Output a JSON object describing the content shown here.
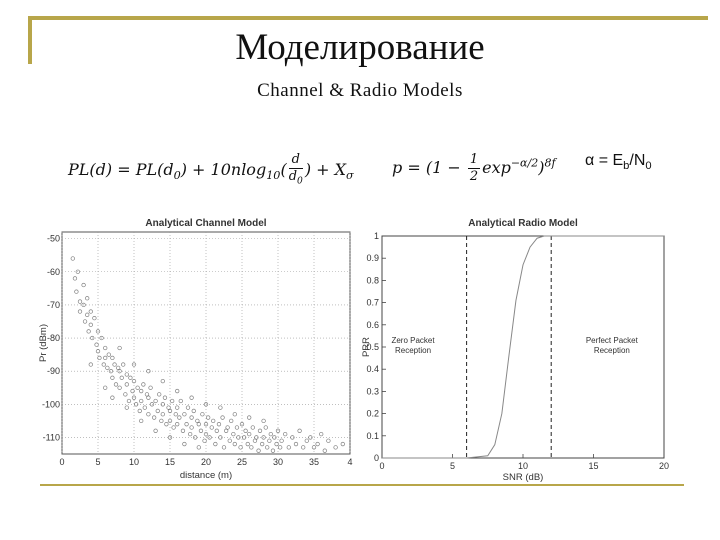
{
  "slide": {
    "title": "Моделирование",
    "subtitle": "Channel & Radio Models",
    "alpha_definition": {
      "lhs": "α = E",
      "e_sub": "b",
      "mid": "/N",
      "n_sub": "0"
    },
    "formula_pl": "PL(d) = PL(d0) + 10nlog10(d/d0) + Xσ",
    "formula_p": "p = (1 − ½ exp(−α/2))^8f"
  },
  "chart_data": [
    {
      "type": "scatter",
      "title": "Analytical Channel Model",
      "xlabel": "distance (m)",
      "ylabel": "Pr (dBm)",
      "xlim": [
        0,
        40
      ],
      "ylim": [
        -115,
        -48
      ],
      "xticks": [
        "0",
        "5",
        "10",
        "15",
        "20",
        "25",
        "30",
        "35",
        "4"
      ],
      "yticks": [
        "-50",
        "-60",
        "-70",
        "-80",
        "-90",
        "-100",
        "-110"
      ],
      "grid": true,
      "points": [
        [
          1.5,
          -56
        ],
        [
          1.8,
          -62
        ],
        [
          2,
          -66
        ],
        [
          2.2,
          -60
        ],
        [
          2.5,
          -69
        ],
        [
          2.5,
          -72
        ],
        [
          3,
          -64
        ],
        [
          3,
          -70
        ],
        [
          3.2,
          -75
        ],
        [
          3.5,
          -68
        ],
        [
          3.5,
          -73
        ],
        [
          3.7,
          -78
        ],
        [
          4,
          -72
        ],
        [
          4,
          -76
        ],
        [
          4.2,
          -80
        ],
        [
          4.5,
          -74
        ],
        [
          4.8,
          -82
        ],
        [
          5,
          -78
        ],
        [
          5,
          -84
        ],
        [
          5.2,
          -86
        ],
        [
          5.5,
          -80
        ],
        [
          5.8,
          -88
        ],
        [
          6,
          -83
        ],
        [
          6,
          -86
        ],
        [
          6.3,
          -89
        ],
        [
          6.5,
          -85
        ],
        [
          6.8,
          -90
        ],
        [
          7,
          -86
        ],
        [
          7,
          -92
        ],
        [
          7.3,
          -88
        ],
        [
          7.5,
          -94
        ],
        [
          7.8,
          -89
        ],
        [
          8,
          -90
        ],
        [
          8,
          -95
        ],
        [
          8.3,
          -92
        ],
        [
          8.5,
          -88
        ],
        [
          8.8,
          -97
        ],
        [
          9,
          -91
        ],
        [
          9,
          -94
        ],
        [
          9.3,
          -99
        ],
        [
          9.5,
          -92
        ],
        [
          9.8,
          -96
        ],
        [
          10,
          -93
        ],
        [
          10,
          -98
        ],
        [
          10.3,
          -100
        ],
        [
          10.5,
          -95
        ],
        [
          10.8,
          -102
        ],
        [
          11,
          -96
        ],
        [
          11,
          -99
        ],
        [
          11.3,
          -94
        ],
        [
          11.5,
          -101
        ],
        [
          11.8,
          -97
        ],
        [
          12,
          -98
        ],
        [
          12,
          -103
        ],
        [
          12.3,
          -95
        ],
        [
          12.5,
          -100
        ],
        [
          12.8,
          -104
        ],
        [
          13,
          -99
        ],
        [
          13.3,
          -102
        ],
        [
          13.5,
          -97
        ],
        [
          13.8,
          -105
        ],
        [
          14,
          -100
        ],
        [
          14,
          -103
        ],
        [
          14.3,
          -98
        ],
        [
          14.5,
          -106
        ],
        [
          14.8,
          -101
        ],
        [
          15,
          -102
        ],
        [
          15,
          -105
        ],
        [
          15.3,
          -99
        ],
        [
          15.5,
          -107
        ],
        [
          15.8,
          -103
        ],
        [
          16,
          -101
        ],
        [
          16,
          -106
        ],
        [
          16.3,
          -104
        ],
        [
          16.5,
          -99
        ],
        [
          16.8,
          -108
        ],
        [
          17,
          -103
        ],
        [
          17.3,
          -106
        ],
        [
          17.5,
          -101
        ],
        [
          17.8,
          -109
        ],
        [
          18,
          -104
        ],
        [
          18,
          -107
        ],
        [
          18.3,
          -102
        ],
        [
          18.5,
          -110
        ],
        [
          18.8,
          -105
        ],
        [
          19,
          -106
        ],
        [
          19.3,
          -108
        ],
        [
          19.5,
          -103
        ],
        [
          19.8,
          -111
        ],
        [
          20,
          -106
        ],
        [
          20,
          -109
        ],
        [
          20.3,
          -104
        ],
        [
          20.5,
          -110
        ],
        [
          20.8,
          -107
        ],
        [
          21,
          -105
        ],
        [
          21.3,
          -112
        ],
        [
          21.5,
          -108
        ],
        [
          21.8,
          -106
        ],
        [
          22,
          -110
        ],
        [
          22.3,
          -104
        ],
        [
          22.5,
          -113
        ],
        [
          22.8,
          -108
        ],
        [
          23,
          -107
        ],
        [
          23.3,
          -111
        ],
        [
          23.5,
          -105
        ],
        [
          23.8,
          -109
        ],
        [
          24,
          -112
        ],
        [
          24.3,
          -107
        ],
        [
          24.5,
          -110
        ],
        [
          24.8,
          -113
        ],
        [
          25,
          -106
        ],
        [
          25.3,
          -110
        ],
        [
          25.5,
          -108
        ],
        [
          25.8,
          -112
        ],
        [
          26,
          -109
        ],
        [
          26.3,
          -113
        ],
        [
          26.5,
          -107
        ],
        [
          26.8,
          -111
        ],
        [
          27,
          -110
        ],
        [
          27.3,
          -114
        ],
        [
          27.5,
          -108
        ],
        [
          27.8,
          -112
        ],
        [
          28,
          -110
        ],
        [
          28.3,
          -107
        ],
        [
          28.5,
          -113
        ],
        [
          28.8,
          -111
        ],
        [
          29,
          -109
        ],
        [
          29.3,
          -114
        ],
        [
          29.5,
          -110
        ],
        [
          29.8,
          -112
        ],
        [
          30,
          -108
        ],
        [
          30.3,
          -113
        ],
        [
          30.5,
          -111
        ],
        [
          31,
          -109
        ],
        [
          31.5,
          -113
        ],
        [
          32,
          -110
        ],
        [
          32.5,
          -112
        ],
        [
          33,
          -108
        ],
        [
          33.5,
          -113
        ],
        [
          34,
          -111
        ],
        [
          34.5,
          -110
        ],
        [
          35,
          -113
        ],
        [
          35.5,
          -112
        ],
        [
          36,
          -109
        ],
        [
          36.5,
          -114
        ],
        [
          37,
          -111
        ],
        [
          38,
          -113
        ],
        [
          39,
          -112
        ],
        [
          6,
          -95
        ],
        [
          7,
          -98
        ],
        [
          9,
          -101
        ],
        [
          11,
          -105
        ],
        [
          13,
          -108
        ],
        [
          15,
          -110
        ],
        [
          17,
          -112
        ],
        [
          19,
          -113
        ],
        [
          4,
          -88
        ],
        [
          8,
          -83
        ],
        [
          10,
          -88
        ],
        [
          12,
          -90
        ],
        [
          14,
          -93
        ],
        [
          16,
          -96
        ],
        [
          18,
          -98
        ],
        [
          20,
          -100
        ],
        [
          22,
          -101
        ],
        [
          24,
          -103
        ],
        [
          26,
          -104
        ],
        [
          28,
          -105
        ]
      ]
    },
    {
      "type": "line",
      "title": "Analytical Radio Model",
      "xlabel": "SNR (dB)",
      "ylabel": "PRR",
      "xlim": [
        0,
        20
      ],
      "ylim": [
        0,
        1
      ],
      "xticks": [
        "0",
        "5",
        "10",
        "15",
        "20"
      ],
      "yticks": [
        "0",
        "0.1",
        "0.2",
        "0.3",
        "0.4",
        "0.5",
        "0.6",
        "0.7",
        "0.8",
        "0.9",
        "1"
      ],
      "grid": false,
      "x": [
        0,
        6,
        7.5,
        8,
        8.5,
        9,
        9.5,
        10,
        10.5,
        11,
        11.5,
        12,
        20
      ],
      "y": [
        0,
        0,
        0.01,
        0.06,
        0.2,
        0.46,
        0.71,
        0.87,
        0.95,
        0.99,
        1,
        1,
        1
      ],
      "vlines": [
        6,
        12
      ],
      "annotations": [
        {
          "text": [
            "Zero Packet",
            "Reception"
          ],
          "x": 2.2,
          "y": 0.5
        },
        {
          "text": [
            "Perfect Packet",
            "Reception"
          ],
          "x": 16.3,
          "y": 0.5
        }
      ]
    }
  ]
}
